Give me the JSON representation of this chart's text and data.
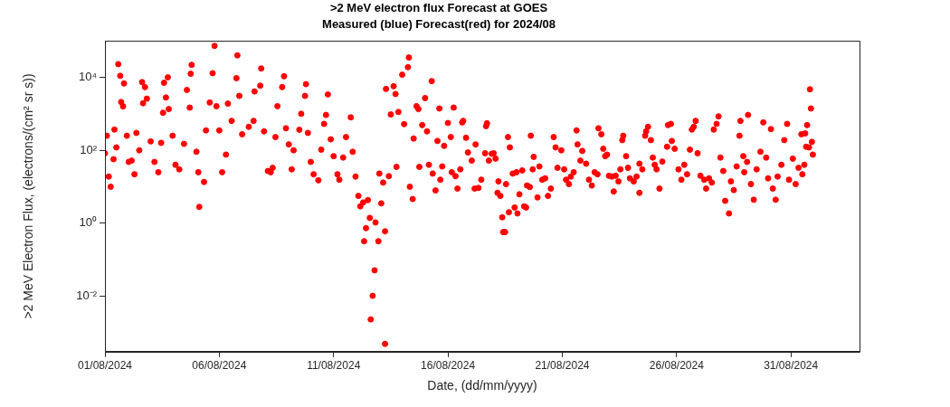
{
  "chart_data": {
    "type": "scatter",
    "title": ">2 MeV electron flux Forecast at GOES",
    "subtitle": "Measured (blue) Forecast(red) for 2024/08",
    "xlabel": "Date, (dd/mm/yyyy)",
    "ylabel": ">2 MeV Electron Flux, (electrons/(cm² sr s))",
    "log": "y",
    "grid": false,
    "legend": false,
    "marker": "circle",
    "xlim": [
      "2024-08-01",
      "2024-09-03"
    ],
    "xticks": [
      {
        "value": "2024-08-01",
        "label": "01/08/2024"
      },
      {
        "value": "2024-08-06",
        "label": "06/08/2024"
      },
      {
        "value": "2024-08-11",
        "label": "11/08/2024"
      },
      {
        "value": "2024-08-16",
        "label": "16/08/2024"
      },
      {
        "value": "2024-08-21",
        "label": "21/08/2024"
      },
      {
        "value": "2024-08-26",
        "label": "26/08/2024"
      },
      {
        "value": "2024-08-31",
        "label": "31/08/2024"
      }
    ],
    "ylim": [
      0.0003,
      100000
    ],
    "yticks": [
      {
        "value": 0.01,
        "label": "10⁻²"
      },
      {
        "value": 1,
        "label": "10⁰"
      },
      {
        "value": 100,
        "label": "10²"
      },
      {
        "value": 10000,
        "label": "10⁴"
      }
    ],
    "series": [
      {
        "color": "#ff0000",
        "x": [
          "2024-08-01T00:00",
          "2024-08-01T02:00",
          "2024-08-01T04:00",
          "2024-08-01T06:00",
          "2024-08-01T09:00",
          "2024-08-01T10:00",
          "2024-08-01T12:00",
          "2024-08-01T14:00",
          "2024-08-01T16:00",
          "2024-08-01T17:00",
          "2024-08-01T19:00",
          "2024-08-01T20:00",
          "2024-08-01T23:00",
          "2024-08-02T01:00",
          "2024-08-02T04:00",
          "2024-08-02T07:00",
          "2024-08-02T09:00",
          "2024-08-02T12:00",
          "2024-08-02T15:00",
          "2024-08-02T16:00",
          "2024-08-02T18:00",
          "2024-08-02T20:00",
          "2024-08-03T00:00",
          "2024-08-03T04:00",
          "2024-08-03T08:00",
          "2024-08-03T11:00",
          "2024-08-03T13:00",
          "2024-08-03T14:00",
          "2024-08-03T16:00",
          "2024-08-03T18:00",
          "2024-08-03T19:00",
          "2024-08-03T23:00",
          "2024-08-04T02:00",
          "2024-08-04T06:00",
          "2024-08-04T11:00",
          "2024-08-04T14:00",
          "2024-08-04T17:00",
          "2024-08-04T18:00",
          "2024-08-04T19:00",
          "2024-08-05T00:00",
          "2024-08-05T02:00",
          "2024-08-05T03:00",
          "2024-08-05T08:00",
          "2024-08-05T10:00",
          "2024-08-05T14:00",
          "2024-08-05T17:00",
          "2024-08-05T19:00",
          "2024-08-05T21:00",
          "2024-08-06T00:00",
          "2024-08-06T03:00",
          "2024-08-06T07:00",
          "2024-08-06T09:00",
          "2024-08-06T13:00",
          "2024-08-06T18:00",
          "2024-08-06T19:00",
          "2024-08-06T21:00",
          "2024-08-07T00:00",
          "2024-08-07T07:00",
          "2024-08-07T12:00",
          "2024-08-07T13:00",
          "2024-08-07T19:00",
          "2024-08-07T20:00",
          "2024-08-07T23:00",
          "2024-08-08T03:00",
          "2024-08-08T06:00",
          "2024-08-08T08:00",
          "2024-08-08T11:00",
          "2024-08-08T13:00",
          "2024-08-08T18:00",
          "2024-08-08T20:00",
          "2024-08-08T22:00",
          "2024-08-09T01:00",
          "2024-08-09T04:00",
          "2024-08-09T06:00",
          "2024-08-09T12:00",
          "2024-08-09T14:00",
          "2024-08-09T18:00",
          "2024-08-09T19:00",
          "2024-08-09T21:00",
          "2024-08-10T00:00",
          "2024-08-10T03:00",
          "2024-08-10T08:00",
          "2024-08-10T11:00",
          "2024-08-10T14:00",
          "2024-08-10T16:00",
          "2024-08-10T18:00",
          "2024-08-10T21:00",
          "2024-08-11T00:00",
          "2024-08-11T04:00",
          "2024-08-11T06:00",
          "2024-08-11T10:00",
          "2024-08-11T13:00",
          "2024-08-11T18:00",
          "2024-08-11T20:00",
          "2024-08-11T23:00",
          "2024-08-12T02:00",
          "2024-08-12T04:00",
          "2024-08-12T07:00",
          "2024-08-12T08:00",
          "2024-08-12T10:00",
          "2024-08-12T12:00",
          "2024-08-12T14:00",
          "2024-08-12T15:00",
          "2024-08-12T17:00",
          "2024-08-12T19:00",
          "2024-08-12T20:00",
          "2024-08-12T23:00",
          "2024-08-13T00:00",
          "2024-08-13T02:00",
          "2024-08-13T04:00",
          "2024-08-13T06:00",
          "2024-08-13T06:00",
          "2024-08-13T07:00",
          "2024-08-13T10:00",
          "2024-08-13T12:00",
          "2024-08-13T15:00",
          "2024-08-13T17:00",
          "2024-08-13T18:00",
          "2024-08-13T20:00",
          "2024-08-14T00:00",
          "2024-08-14T02:00",
          "2024-08-14T06:00",
          "2024-08-14T07:00",
          "2024-08-14T08:00",
          "2024-08-14T11:00",
          "2024-08-14T12:00",
          "2024-08-14T15:00",
          "2024-08-14T17:00",
          "2024-08-14T18:00",
          "2024-08-14T21:00",
          "2024-08-15T00:00",
          "2024-08-15T02:00",
          "2024-08-15T04:00",
          "2024-08-15T07:00",
          "2024-08-15T08:00",
          "2024-08-15T11:00",
          "2024-08-15T13:00",
          "2024-08-15T15:00",
          "2024-08-15T16:00",
          "2024-08-15T18:00",
          "2024-08-15T20:00",
          "2024-08-16T00:00",
          "2024-08-16T03:00",
          "2024-08-16T04:00",
          "2024-08-16T06:00",
          "2024-08-16T08:00",
          "2024-08-16T10:00",
          "2024-08-16T13:00",
          "2024-08-16T15:00",
          "2024-08-16T16:00",
          "2024-08-16T19:00",
          "2024-08-16T21:00",
          "2024-08-17T01:00",
          "2024-08-17T04:00",
          "2024-08-17T05:00",
          "2024-08-17T08:00",
          "2024-08-17T11:00",
          "2024-08-17T15:00",
          "2024-08-17T16:00",
          "2024-08-17T17:00",
          "2024-08-17T19:00",
          "2024-08-17T22:00",
          "2024-08-18T00:00",
          "2024-08-18T02:00",
          "2024-08-18T04:00",
          "2024-08-18T05:00",
          "2024-08-18T07:00",
          "2024-08-18T09:00",
          "2024-08-18T10:00",
          "2024-08-18T12:00",
          "2024-08-18T13:00",
          "2024-08-18T15:00",
          "2024-08-18T16:00",
          "2024-08-18T17:00",
          "2024-08-18T20:00",
          "2024-08-18T22:00",
          "2024-08-19T00:00",
          "2024-08-19T01:00",
          "2024-08-19T03:00",
          "2024-08-19T06:00",
          "2024-08-19T08:00",
          "2024-08-19T10:00",
          "2024-08-19T11:00",
          "2024-08-19T14:00",
          "2024-08-19T15:00",
          "2024-08-19T17:00",
          "2024-08-19T18:00",
          "2024-08-19T22:00",
          "2024-08-20T00:00",
          "2024-08-20T03:00",
          "2024-08-20T06:00",
          "2024-08-20T09:00",
          "2024-08-20T12:00",
          "2024-08-20T15:00",
          "2024-08-20T17:00",
          "2024-08-20T19:00",
          "2024-08-20T23:00",
          "2024-08-21T02:00",
          "2024-08-21T04:00",
          "2024-08-21T07:00",
          "2024-08-21T09:00",
          "2024-08-21T12:00",
          "2024-08-21T15:00",
          "2024-08-21T16:00",
          "2024-08-21T19:00",
          "2024-08-21T21:00",
          "2024-08-22T01:00",
          "2024-08-22T04:00",
          "2024-08-22T07:00",
          "2024-08-22T10:00",
          "2024-08-22T13:00",
          "2024-08-22T14:00",
          "2024-08-22T17:00",
          "2024-08-22T19:00",
          "2024-08-22T21:00",
          "2024-08-22T23:00",
          "2024-08-23T01:00",
          "2024-08-23T04:00",
          "2024-08-23T06:00",
          "2024-08-23T08:00",
          "2024-08-23T11:00",
          "2024-08-23T13:00",
          "2024-08-23T15:00",
          "2024-08-23T16:00",
          "2024-08-23T19:00",
          "2024-08-23T21:00",
          "2024-08-23T23:00",
          "2024-08-24T03:00",
          "2024-08-24T06:00",
          "2024-08-24T09:00",
          "2024-08-24T09:00",
          "2024-08-24T12:00",
          "2024-08-24T15:00",
          "2024-08-24T16:00",
          "2024-08-24T18:00",
          "2024-08-24T21:00",
          "2024-08-24T23:00",
          "2024-08-25T01:00",
          "2024-08-25T03:00",
          "2024-08-25T06:00",
          "2024-08-25T09:00",
          "2024-08-25T14:00",
          "2024-08-25T15:00",
          "2024-08-25T18:00",
          "2024-08-25T19:00",
          "2024-08-25T22:00",
          "2024-08-26T02:00",
          "2024-08-26T05:00",
          "2024-08-26T08:00",
          "2024-08-26T11:00",
          "2024-08-26T14:00",
          "2024-08-26T16:00",
          "2024-08-26T18:00",
          "2024-08-26T20:00",
          "2024-08-26T22:00",
          "2024-08-27T01:00",
          "2024-08-27T05:00",
          "2024-08-27T07:00",
          "2024-08-27T10:00",
          "2024-08-27T13:00",
          "2024-08-27T15:00",
          "2024-08-27T18:00",
          "2024-08-27T20:00",
          "2024-08-27T22:00",
          "2024-08-28T01:00",
          "2024-08-28T03:00",
          "2024-08-28T07:00",
          "2024-08-28T09:00",
          "2024-08-28T12:00",
          "2024-08-28T15:00",
          "2024-08-28T18:00",
          "2024-08-28T19:00",
          "2024-08-28T22:00",
          "2024-08-28T23:00",
          "2024-08-29T02:00",
          "2024-08-29T03:00",
          "2024-08-29T06:00",
          "2024-08-29T09:00",
          "2024-08-29T12:00",
          "2024-08-29T16:00",
          "2024-08-29T19:00",
          "2024-08-29T22:00",
          "2024-08-30T00:00",
          "2024-08-30T03:00",
          "2024-08-30T05:00",
          "2024-08-30T08:00",
          "2024-08-30T10:00",
          "2024-08-30T14:00",
          "2024-08-30T17:00",
          "2024-08-30T20:00",
          "2024-08-30T22:00",
          "2024-08-31T02:00",
          "2024-08-31T05:00",
          "2024-08-31T08:00",
          "2024-08-31T11:00",
          "2024-08-31T12:00",
          "2024-08-31T14:00",
          "2024-08-31T15:00",
          "2024-08-31T16:00",
          "2024-08-31T17:00",
          "2024-08-31T19:00",
          "2024-08-31T20:00",
          "2024-08-31T21:00",
          "2024-08-31T22:00",
          "2024-08-31T23:00"
        ],
        "values": [
          83,
          250,
          19,
          10,
          57,
          370,
          120,
          23000,
          11000,
          2100,
          1600,
          6800,
          250,
          48,
          52,
          22,
          300,
          100,
          7400,
          1950,
          5400,
          2600,
          175,
          48,
          25,
          160,
          1070,
          7100,
          2800,
          10000,
          1350,
          250,
          40,
          30,
          150,
          4500,
          1480,
          12500,
          22000,
          91,
          25,
          2.8,
          13.5,
          350,
          2040,
          13000,
          73000,
          1620,
          350,
          25,
          76,
          1900,
          640,
          9500,
          40000,
          3100,
          275,
          440,
          640,
          4100,
          5900,
          17500,
          330,
          27,
          25,
          33,
          230,
          1620,
          5400,
          10700,
          400,
          145,
          30,
          100,
          365,
          1000,
          3100,
          6500,
          300,
          48,
          22,
          15,
          104,
          530,
          930,
          3400,
          200,
          69,
          22,
          15.6,
          63,
          230,
          800,
          91,
          19,
          5.6,
          2.9,
          3.7,
          0.32,
          0.73,
          4.3,
          1.4,
          0.0023,
          0.0102,
          0.051,
          1.05,
          0.32,
          23,
          3.5,
          13,
          0.00049,
          0.6,
          4800,
          19.5,
          960,
          5700,
          3500,
          35,
          1120,
          11800,
          520,
          19000,
          35000,
          10,
          4.6,
          210,
          1620,
          1350,
          35,
          490,
          2700,
          330,
          40,
          7900,
          23,
          7.9,
          180,
          1400,
          15.6,
          36,
          132,
          560,
          230,
          25,
          1480,
          19.5,
          8.9,
          30,
          580,
          640,
          220,
          87,
          52,
          8.9,
          145,
          9.3,
          15.6,
          83,
          460,
          550,
          52,
          80,
          83,
          59,
          6.8,
          14,
          5.6,
          1.45,
          0.57,
          0.57,
          11.8,
          230,
          2,
          120,
          23,
          2.7,
          25,
          1.85,
          6.2,
          28,
          2.9,
          2.7,
          10.8,
          9.8,
          250,
          30,
          66,
          5.1,
          36,
          15.6,
          17,
          5.6,
          8.9,
          230,
          120,
          33,
          100,
          30,
          15.6,
          11.8,
          19,
          25,
          350,
          145,
          52,
          96,
          43,
          15.6,
          10.8,
          25,
          22,
          400,
          275,
          110,
          69,
          76,
          20,
          19,
          7.4,
          20,
          14,
          30,
          190,
          250,
          69,
          33,
          17,
          14,
          19,
          6.8,
          43,
          30,
          250,
          330,
          440,
          190,
          63,
          40,
          30,
          8.9,
          49,
          125,
          490,
          530,
          180,
          110,
          30,
          15.6,
          40,
          22,
          104,
          370,
          440,
          640,
          83,
          20,
          15.6,
          8.9,
          17,
          13,
          370,
          530,
          850,
          63,
          27,
          4.1,
          1.85,
          14,
          8.1,
          36,
          250,
          640,
          69,
          25,
          48,
          930,
          11.8,
          4.4,
          30,
          91,
          580,
          63,
          17,
          380,
          8.9,
          4.4,
          19,
          40,
          190,
          530,
          15.6,
          59,
          11.8,
          33,
          275,
          22,
          40,
          290,
          125,
          490,
          120,
          4700,
          1400,
          170,
          76
        ]
      }
    ]
  }
}
